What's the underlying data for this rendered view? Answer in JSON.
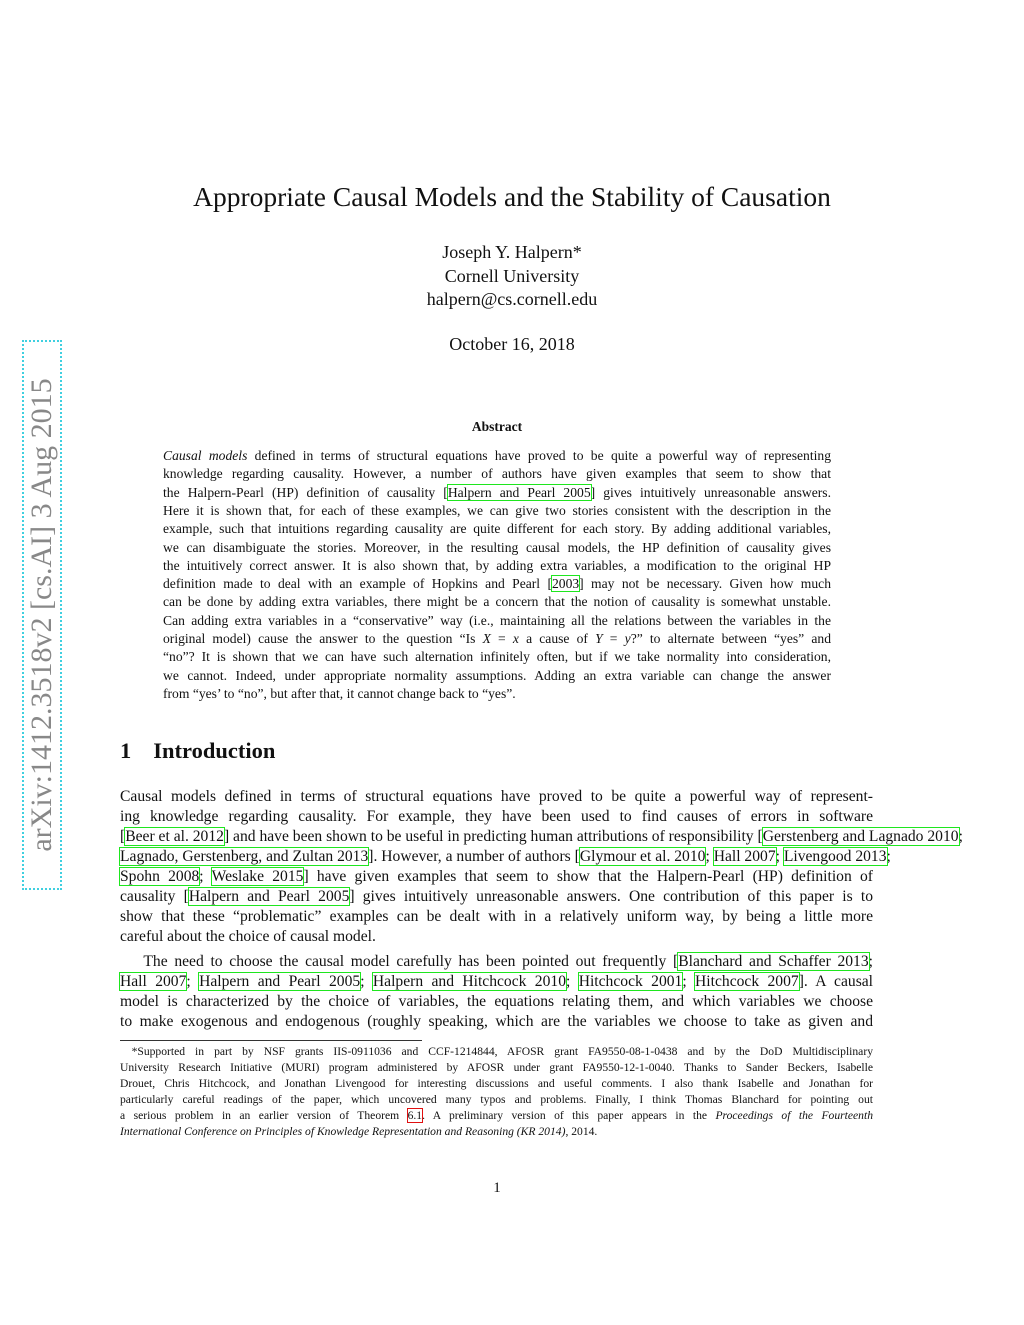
{
  "stamp": "arXiv:1412.3518v2  [cs.AI]  3 Aug 2015",
  "title": "Appropriate Causal Models and the Stability of Causation",
  "author": "Joseph Y. Halpern*",
  "affiliation": "Cornell University",
  "email": "halpern@cs.cornell.edu",
  "date": "October 16, 2018",
  "abstract": {
    "heading": "Abstract",
    "lines": [
      [
        {
          "i": "Causal models"
        },
        " defined in terms of structural equations have proved to be quite a powerful way of representing"
      ],
      [
        "knowledge regarding causality.  However, a number of authors have given examples that seem to show that"
      ],
      [
        "the Halpern-Pearl (HP) definition of causality [",
        {
          "link": "Halpern and Pearl 2005"
        },
        "] gives intuitively unreasonable answers."
      ],
      [
        "Here it is shown that, for each of these examples, we can give two stories consistent with the description in the"
      ],
      [
        "example, such that intuitions regarding causality are quite different for each story. By adding additional variables,"
      ],
      [
        "we can disambiguate the stories. Moreover, in the resulting causal models, the HP definition of causality gives"
      ],
      [
        "the intuitively correct answer. It is also shown that, by adding extra variables, a modification to the original HP"
      ],
      [
        "definition made to deal with an example of Hopkins and Pearl [",
        {
          "link": "2003"
        },
        "] may not be necessary. Given how much"
      ],
      [
        "can be done by adding extra variables, there might be a concern that the notion of causality is somewhat unstable."
      ],
      [
        "Can adding extra variables in a “conservative” way (i.e., maintaining all the relations between the variables in the"
      ],
      [
        "original model) cause the answer to the question “Is ",
        {
          "i": "X"
        },
        " = ",
        {
          "i": "x"
        },
        " a cause of ",
        {
          "i": "Y"
        },
        " = ",
        {
          "i": "y"
        },
        "?” to alternate between “yes” and"
      ],
      [
        "“no”? It is shown that we can have such alternation infinitely often, but if we take normality into consideration,"
      ],
      [
        "we cannot. Indeed, under appropriate normality assumptions. Adding an extra variable can change the answer"
      ],
      [
        "from “yes’ to “no”, but after that, it cannot change back to “yes”."
      ]
    ]
  },
  "section": {
    "number": "1",
    "title": "Introduction"
  },
  "intro": {
    "lines": [
      [
        "Causal models defined in terms of structural equations have proved to be quite a powerful way of represent-"
      ],
      [
        "ing knowledge regarding causality.  For example, they have been used to find causes of errors in software"
      ],
      [
        "[",
        {
          "link": "Beer et al. 2012"
        },
        "] and have been shown to be useful in predicting human attributions of responsibility [",
        {
          "link": "Gerstenberg and Lagnado 2010"
        },
        ";"
      ],
      [
        {
          "link": "Lagnado, Gerstenberg, and Zultan 2013"
        },
        "]. However, a number of authors [",
        {
          "link": "Glymour et al. 2010"
        },
        "; ",
        {
          "link": "Hall 2007"
        },
        "; ",
        {
          "link": "Livengood 2013"
        },
        ";"
      ],
      [
        {
          "link": "Spohn 2008"
        },
        "; ",
        {
          "link": "Weslake 2015"
        },
        "]  have given examples that seem to show that the Halpern-Pearl (HP) definition of"
      ],
      [
        "causality [",
        {
          "link": "Halpern and Pearl 2005"
        },
        "] gives intuitively unreasonable answers.  One contribution of this paper is to"
      ],
      [
        "show that these “problematic” examples can be dealt with in a relatively uniform way, by being a little more"
      ],
      [
        "careful about the choice of causal model."
      ],
      [
        "  The need to choose the causal model carefully has been pointed out frequently [",
        {
          "link": "Blanchard and Schaffer 2013"
        },
        ";"
      ],
      [
        {
          "link": "Hall 2007"
        },
        "; ",
        {
          "link": "Halpern and Pearl 2005"
        },
        "; ",
        {
          "link": "Halpern and Hitchcock 2010"
        },
        "; ",
        {
          "link": "Hitchcock 2001"
        },
        "; ",
        {
          "link": "Hitchcock 2007"
        },
        "].  A causal"
      ],
      [
        "model is characterized by the choice of variables, the equations relating them, and which variables we choose"
      ],
      [
        "to make exogenous and endogenous (roughly speaking, which are the variables we choose to take as given and"
      ]
    ]
  },
  "footnote": {
    "lines": [
      [
        " *Supported in part by NSF grants IIS-0911036 and CCF-1214844, AFOSR grant FA9550-08-1-0438 and by the DoD Multidisciplinary"
      ],
      [
        "University Research Initiative (MURI) program administered by AFOSR under grant FA9550-12-1-0040. Thanks to Sander Beckers, Isabelle"
      ],
      [
        "Drouet, Chris Hitchcock, and Jonathan Livengood for interesting discussions and useful comments.  I also thank Isabelle and Jonathan for"
      ],
      [
        "particularly careful readings of the paper, which uncovered many typos and problems.  Finally, I think Thomas Blanchard for pointing out"
      ],
      [
        "a serious problem in an earlier version of Theorem ",
        {
          "red": "6.1"
        },
        ".  A preliminary version of this paper appears in the ",
        {
          "i": "Proceedings of the Fourteenth"
        }
      ],
      [
        {
          "i": "International Conference on Principles of Knowledge Representation and Reasoning (KR 2014)"
        },
        ", 2014."
      ]
    ]
  },
  "page_number": "1",
  "colors": {
    "citation_box": "#1ee61e",
    "ref_box": "#e01010",
    "stamp_border": "#3fd0e0",
    "stamp_text": "#888888"
  }
}
